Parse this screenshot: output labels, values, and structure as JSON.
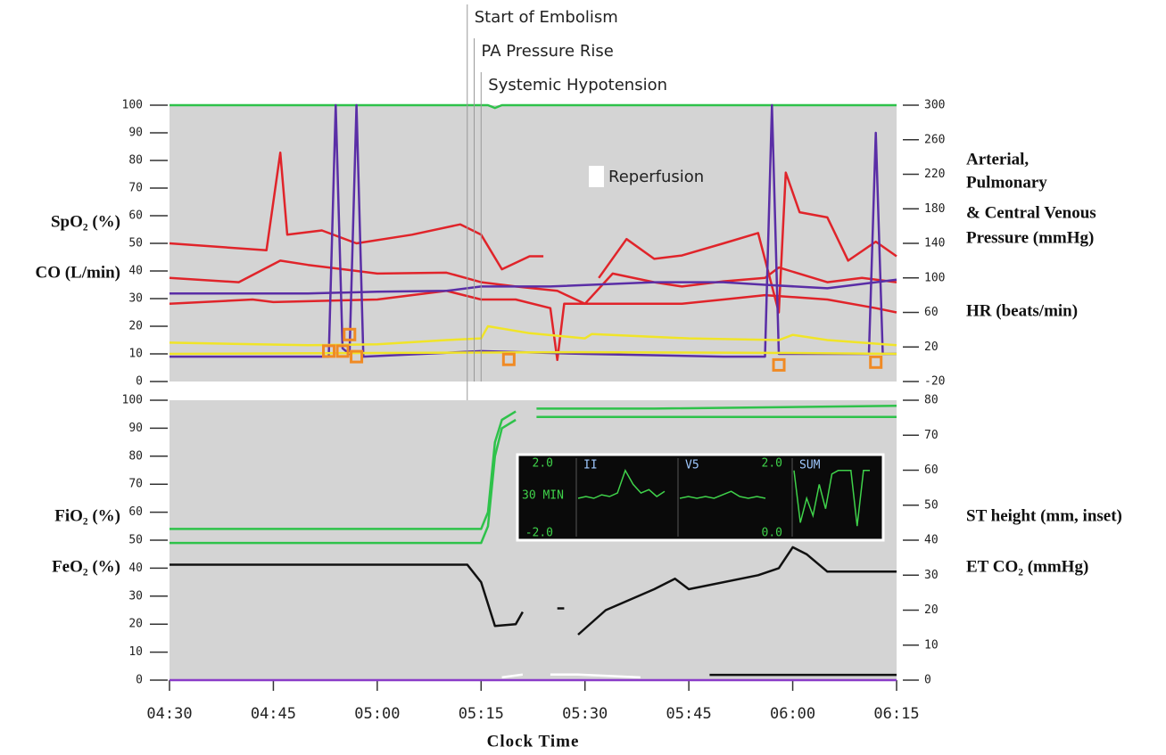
{
  "chart_data": [
    {
      "type": "line",
      "xlim": [
        "04:30",
        "06:15"
      ],
      "ylim": [
        0,
        100
      ],
      "yticks": [
        0,
        10,
        20,
        30,
        40,
        50,
        60,
        70,
        80,
        90,
        100
      ],
      "y2lim": [
        -20,
        300
      ],
      "y2ticks": [
        -20,
        20,
        60,
        100,
        140,
        180,
        220,
        260,
        300
      ],
      "background": "#d4d4d4",
      "ylabels": [
        "SpO₂ (%)",
        "CO (L/min)"
      ],
      "y2labels": [
        [
          "Arterial,",
          "Pulmonary",
          "& Central Venous",
          "Pressure (mmHg)"
        ],
        [
          "HR (beats/min)"
        ]
      ],
      "annotations": [
        {
          "text": "Start of Embolism",
          "x": "05:13"
        },
        {
          "text": "PA Pressure Rise",
          "x": "05:14"
        },
        {
          "text": "Systemic Hypotension",
          "x": "05:15"
        }
      ],
      "legend": [
        {
          "name": "Reperfusion",
          "color": "#ffffff"
        }
      ],
      "series": [
        {
          "color": "#2ec24a",
          "x": [
            "04:30",
            "05:16",
            "05:17",
            "05:18",
            "06:15"
          ],
          "values": [
            100,
            100,
            99,
            100,
            100
          ]
        },
        {
          "color": "#e0242a",
          "axis": "y2",
          "x": [
            "04:30",
            "04:44",
            "04:46",
            "04:47",
            "04:52",
            "04:57",
            "05:05",
            "05:12",
            "05:15",
            "05:18",
            "05:22",
            "05:24",
            "05:25",
            "05:32",
            "05:36",
            "05:40",
            "05:44",
            "05:50",
            "05:55",
            "05:58",
            "05:59",
            "06:01",
            "06:05",
            "06:08",
            "06:12",
            "06:15"
          ],
          "values": [
            140,
            132,
            245,
            150,
            155,
            140,
            150,
            162,
            150,
            110,
            125,
            125,
            null,
            100,
            145,
            122,
            126,
            140,
            152,
            60,
            222,
            176,
            170,
            120,
            142,
            125
          ]
        },
        {
          "color": "#e0242a",
          "axis": "y2",
          "x": [
            "04:30",
            "04:40",
            "04:46",
            "04:50",
            "05:00",
            "05:10",
            "05:15",
            "05:20",
            "05:26",
            "05:30",
            "05:34",
            "05:40",
            "05:44",
            "05:50",
            "05:56",
            "05:58",
            "06:05",
            "06:10",
            "06:15"
          ],
          "values": [
            100,
            95,
            120,
            115,
            105,
            106,
            95,
            90,
            85,
            70,
            105,
            95,
            90,
            96,
            100,
            112,
            95,
            100,
            95
          ]
        },
        {
          "color": "#e0242a",
          "axis": "y2",
          "x": [
            "04:30",
            "04:42",
            "04:45",
            "05:00",
            "05:10",
            "05:15",
            "05:20",
            "05:25",
            "05:26",
            "05:27",
            "05:35",
            "05:44",
            "05:50",
            "05:56",
            "06:05",
            "06:12",
            "06:15"
          ],
          "values": [
            70,
            75,
            72,
            75,
            85,
            75,
            75,
            65,
            5,
            70,
            70,
            70,
            75,
            80,
            75,
            65,
            60
          ]
        },
        {
          "color": "#5a2ea6",
          "axis": "y2",
          "x": [
            "04:30",
            "04:50",
            "05:00",
            "05:10",
            "05:15",
            "05:25",
            "05:40",
            "05:50",
            "05:56",
            "06:05",
            "06:15"
          ],
          "values": [
            82,
            82,
            84,
            85,
            90,
            90,
            95,
            95,
            92,
            88,
            98
          ]
        },
        {
          "color": "#5a2ea6",
          "x": [
            "04:30",
            "04:53",
            "04:54",
            "04:55",
            "04:56",
            "04:57",
            "04:58",
            "05:15",
            "05:30",
            "05:50",
            "05:56",
            "05:57",
            "05:58",
            "06:11",
            "06:12",
            "06:13",
            "06:15"
          ],
          "values": [
            9,
            9,
            100,
            12,
            10,
            100,
            9,
            11,
            10,
            9,
            9,
            100,
            10,
            10,
            90,
            10,
            10
          ]
        },
        {
          "color": "#f0e428",
          "axis": "y2",
          "x": [
            "04:30",
            "04:50",
            "05:00",
            "05:10",
            "05:15",
            "05:16",
            "05:22",
            "05:30",
            "05:31",
            "05:45",
            "05:58",
            "06:00",
            "06:05",
            "06:15"
          ],
          "values": [
            25,
            22,
            23,
            28,
            30,
            44,
            36,
            30,
            35,
            30,
            28,
            34,
            28,
            22
          ]
        },
        {
          "color": "#f0e428",
          "axis": "y2",
          "x": [
            "04:30",
            "05:00",
            "05:30",
            "06:00",
            "06:15"
          ],
          "values": [
            12,
            13,
            14,
            13,
            12
          ]
        },
        {
          "color": "#f08a24",
          "mode": "markers",
          "x": [
            "04:53",
            "04:55",
            "04:56",
            "04:57",
            "05:19",
            "05:58",
            "06:12"
          ],
          "values": [
            11,
            11,
            17,
            9,
            8,
            6,
            7
          ]
        }
      ]
    },
    {
      "type": "line",
      "xlim": [
        "04:30",
        "06:15"
      ],
      "ylim": [
        0,
        100
      ],
      "yticks": [
        0,
        10,
        20,
        30,
        40,
        50,
        60,
        70,
        80,
        90,
        100
      ],
      "y2lim": [
        0,
        80
      ],
      "y2ticks": [
        0,
        10,
        20,
        30,
        40,
        50,
        60,
        70,
        80
      ],
      "background": "#d4d4d4",
      "xticks": [
        "04:30",
        "04:45",
        "05:00",
        "05:15",
        "05:30",
        "05:45",
        "06:00",
        "06:15"
      ],
      "xlabel": "Clock Time",
      "ylabels": [
        "FiO₂ (%)",
        "FeO₂ (%)"
      ],
      "y2labels": [
        [
          "ST height (mm, inset)"
        ],
        [
          "ET CO₂ (mmHg)"
        ]
      ],
      "series": [
        {
          "color": "#2ec24a",
          "x": [
            "04:30",
            "05:15",
            "05:16",
            "05:17",
            "05:18",
            "05:20",
            "05:22",
            "05:23",
            "05:40",
            "06:15"
          ],
          "values": [
            54,
            54,
            60,
            85,
            93,
            96,
            null,
            97,
            97,
            98
          ]
        },
        {
          "color": "#2ec24a",
          "x": [
            "04:30",
            "05:15",
            "05:16",
            "05:17",
            "05:18",
            "05:20",
            "05:22",
            "05:23",
            "05:40",
            "06:15"
          ],
          "values": [
            49,
            49,
            55,
            80,
            90,
            93,
            null,
            94,
            94,
            94
          ]
        },
        {
          "color": "#111111",
          "axis": "y2",
          "x": [
            "04:30",
            "05:13",
            "05:15",
            "05:17",
            "05:20",
            "05:21",
            "05:22",
            "05:26",
            "05:27",
            "05:28",
            "05:29",
            "05:33",
            "05:40",
            "05:43",
            "05:45",
            "05:55",
            "05:58",
            "06:00",
            "06:02",
            "06:05",
            "06:15"
          ],
          "values": [
            33,
            33,
            28,
            15.5,
            16,
            19.5,
            null,
            20.5,
            20.5,
            null,
            13,
            20,
            26,
            29,
            26,
            30,
            32,
            38,
            36,
            31,
            31
          ]
        },
        {
          "color": "#8a3cc8",
          "x": [
            "04:30",
            "06:15"
          ],
          "values": [
            0,
            0
          ]
        },
        {
          "color": "#ffffff",
          "x": [
            "05:18",
            "05:21",
            "05:22",
            "05:25",
            "05:29",
            "05:38"
          ],
          "values": [
            1,
            2,
            null,
            2,
            2,
            1
          ]
        },
        {
          "color": "#111111",
          "axis": "y2",
          "x": [
            "05:48",
            "06:15"
          ],
          "values": [
            1.5,
            1.5
          ]
        }
      ],
      "inset": {
        "span": "30 MIN",
        "panels": [
          {
            "label": "II",
            "ylim": [
              -2,
              2
            ],
            "yticks": [
              {
                "value": 2,
                "label": "2.0"
              },
              {
                "value": -2,
                "label": "-2.0"
              }
            ],
            "values": [
              0,
              0.1,
              0,
              0.2,
              0.1,
              0.3,
              1.6,
              0.8,
              0.3,
              0.5,
              0.1,
              0.4
            ]
          },
          {
            "label": "V5",
            "ylim": [
              -2,
              2
            ],
            "values": [
              0,
              0.1,
              0,
              0.1,
              0,
              0.2,
              0.4,
              0.1,
              0,
              0.1,
              0
            ]
          },
          {
            "label": "SUM",
            "ylim": [
              0,
              2
            ],
            "yticks": [
              {
                "value": 2,
                "label": "2.0"
              },
              {
                "value": 0,
                "label": "0.0"
              }
            ],
            "values": [
              1.8,
              0.3,
              1.0,
              0.5,
              1.4,
              0.7,
              1.7,
              1.8,
              1.8,
              1.8,
              0.2,
              1.8,
              1.8
            ]
          }
        ]
      }
    }
  ]
}
